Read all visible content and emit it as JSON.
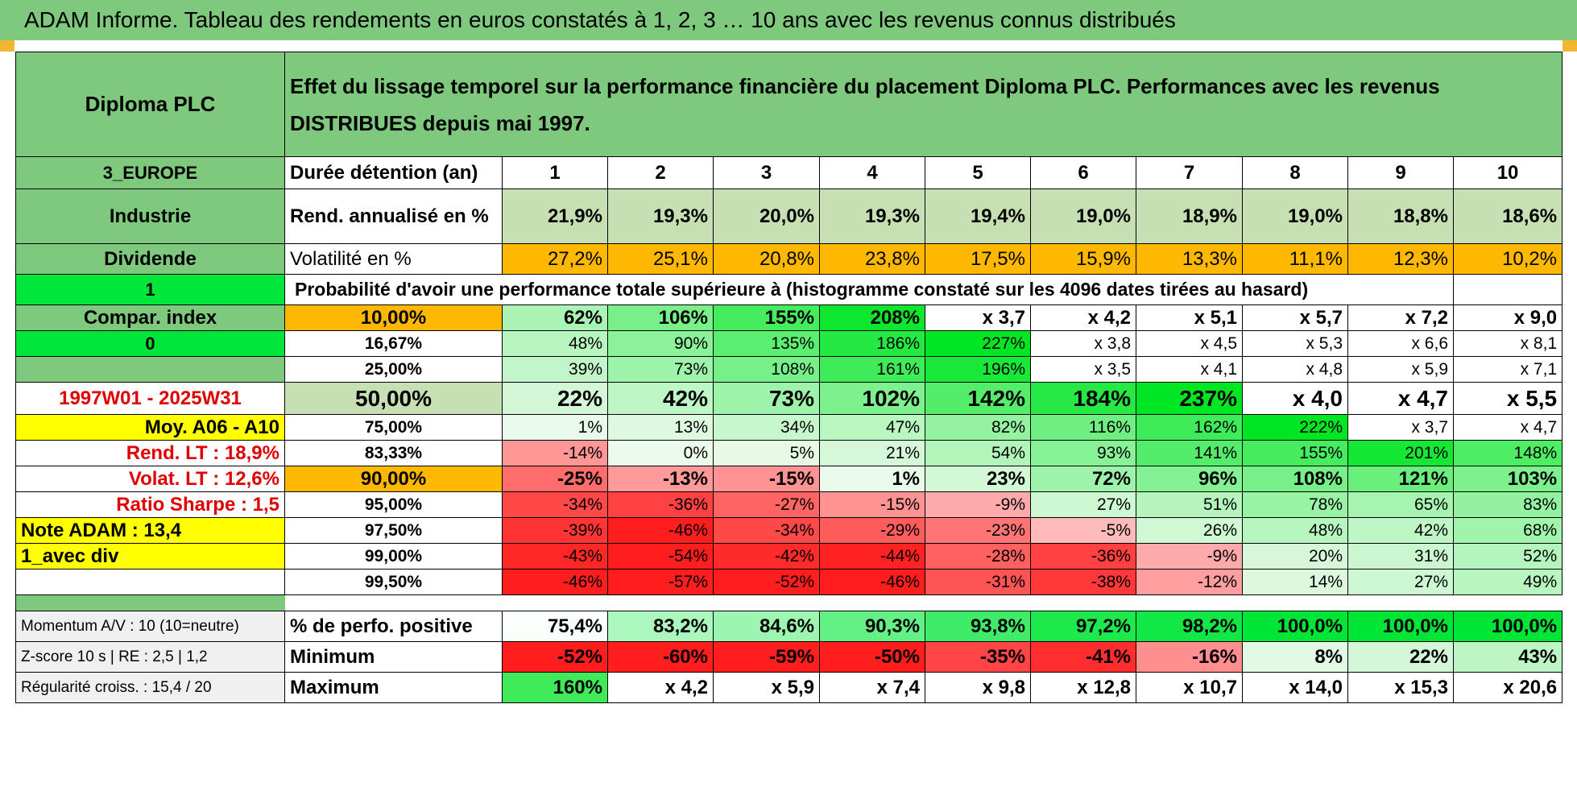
{
  "title": "ADAM Informe. Tableau des rendements en euros constatés à 1, 2, 3 … 10 ans avec les revenus connus distribués",
  "left": {
    "company": "Diploma PLC",
    "region": "3_EUROPE",
    "sector": "Industrie",
    "type": "Dividende",
    "flag1": "1",
    "compar": "Compar. index",
    "flag0": "0",
    "period": "1997W01 - 2025W31",
    "moy": "Moy. A06 - A10",
    "rend_lt": "Rend. LT :    18,9%",
    "volat_lt": "Volat. LT :    12,6%",
    "sharpe": "Ratio Sharpe :     1,5",
    "note": "Note ADAM : 13,4",
    "avec_div": "1_avec div",
    "momentum": "Momentum A/V : 10 (10=neutre)",
    "zscore": "Z-score 10 s | RE : 2,5 | 1,2",
    "regularite": "Régularité croiss. : 15,4 / 20"
  },
  "header_text": "Effet du lissage temporel sur la performance financière du placement Diploma PLC. Performances avec les revenus DISTRIBUES depuis mai 1997.",
  "duree_label": "Durée détention (an)",
  "years": [
    "1",
    "2",
    "3",
    "4",
    "5",
    "6",
    "7",
    "8",
    "9",
    "10"
  ],
  "rend_label": "Rend. annualisé en %",
  "rend": [
    "21,9%",
    "19,3%",
    "20,0%",
    "19,3%",
    "19,4%",
    "19,0%",
    "18,9%",
    "19,0%",
    "18,8%",
    "18,6%"
  ],
  "vol_label": "Volatilité en %",
  "vol": [
    "27,2%",
    "25,1%",
    "20,8%",
    "23,8%",
    "17,5%",
    "15,9%",
    "13,3%",
    "11,1%",
    "12,3%",
    "10,2%"
  ],
  "proba_label": "Probabilité d'avoir une performance totale supérieure à (histogramme constaté sur les 4096 dates tirées au hasard)",
  "quantiles": [
    {
      "p": "10,00%",
      "v": [
        "62%",
        "106%",
        "155%",
        "208%",
        "x 3,7",
        "x 4,2",
        "x 5,1",
        "x 5,7",
        "x 7,2",
        "x 9,0"
      ]
    },
    {
      "p": "16,67%",
      "v": [
        "48%",
        "90%",
        "135%",
        "186%",
        "227%",
        "x 3,8",
        "x 4,5",
        "x 5,3",
        "x 6,6",
        "x 8,1"
      ]
    },
    {
      "p": "25,00%",
      "v": [
        "39%",
        "73%",
        "108%",
        "161%",
        "196%",
        "x 3,5",
        "x 4,1",
        "x 4,8",
        "x 5,9",
        "x 7,1"
      ]
    },
    {
      "p": "50,00%",
      "v": [
        "22%",
        "42%",
        "73%",
        "102%",
        "142%",
        "184%",
        "237%",
        "x 4,0",
        "x 4,7",
        "x 5,5"
      ]
    },
    {
      "p": "75,00%",
      "v": [
        "1%",
        "13%",
        "34%",
        "47%",
        "82%",
        "116%",
        "162%",
        "222%",
        "x 3,7",
        "x 4,7"
      ]
    },
    {
      "p": "83,33%",
      "v": [
        "-14%",
        "0%",
        "5%",
        "21%",
        "54%",
        "93%",
        "141%",
        "155%",
        "201%",
        "148%"
      ]
    },
    {
      "p": "90,00%",
      "v": [
        "-25%",
        "-13%",
        "-15%",
        "1%",
        "23%",
        "72%",
        "96%",
        "108%",
        "121%",
        "103%"
      ]
    },
    {
      "p": "95,00%",
      "v": [
        "-34%",
        "-36%",
        "-27%",
        "-15%",
        "-9%",
        "27%",
        "51%",
        "78%",
        "65%",
        "83%"
      ]
    },
    {
      "p": "97,50%",
      "v": [
        "-39%",
        "-46%",
        "-34%",
        "-29%",
        "-23%",
        "-5%",
        "26%",
        "48%",
        "42%",
        "68%"
      ]
    },
    {
      "p": "99,00%",
      "v": [
        "-43%",
        "-54%",
        "-42%",
        "-44%",
        "-28%",
        "-36%",
        "-9%",
        "20%",
        "31%",
        "52%"
      ]
    },
    {
      "p": "99,50%",
      "v": [
        "-46%",
        "-57%",
        "-52%",
        "-46%",
        "-31%",
        "-38%",
        "-12%",
        "14%",
        "27%",
        "49%"
      ]
    }
  ],
  "pos_label": "% de perfo. positive",
  "pos": [
    "75,4%",
    "83,2%",
    "84,6%",
    "90,3%",
    "93,8%",
    "97,2%",
    "98,2%",
    "100,0%",
    "100,0%",
    "100,0%"
  ],
  "min_label": "Minimum",
  "min": [
    "-52%",
    "-60%",
    "-59%",
    "-50%",
    "-35%",
    "-41%",
    "-16%",
    "8%",
    "22%",
    "43%"
  ],
  "max_label": "Maximum",
  "max": [
    "160%",
    "x 4,2",
    "x 5,9",
    "x 7,4",
    "x 9,8",
    "x 12,8",
    "x 10,7",
    "x 14,0",
    "x 15,3",
    "x 20,6"
  ],
  "colors": {
    "header_green": "#7fc97f",
    "bright_green": "#00e63a",
    "yellow": "#ffff00",
    "orange": "#ffb800",
    "label_red": "#e00000"
  }
}
